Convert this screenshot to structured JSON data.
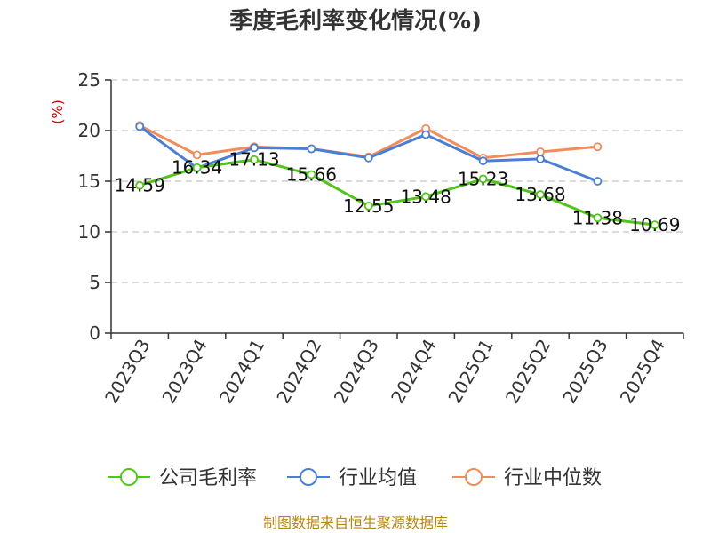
{
  "chart_data": {
    "type": "line",
    "title": "季度毛利率变化情况(%)",
    "ylabel": "(%)",
    "ylim": [
      0,
      25
    ],
    "yticks": [
      0,
      5,
      10,
      15,
      20,
      25
    ],
    "grid": true,
    "legend_position": "bottom",
    "categories": [
      "2023Q3",
      "2023Q4",
      "2024Q1",
      "2024Q2",
      "2024Q3",
      "2024Q4",
      "2025Q1",
      "2025Q2",
      "2025Q3",
      "2025Q4"
    ],
    "series": [
      {
        "name": "公司毛利率",
        "color": "#52c41a",
        "show_labels": true,
        "values": [
          14.59,
          16.34,
          17.13,
          15.66,
          12.55,
          13.48,
          15.23,
          13.68,
          11.38,
          10.69
        ]
      },
      {
        "name": "行业均值",
        "color": "#4a7fd4",
        "show_labels": false,
        "values": [
          20.4,
          16.3,
          18.3,
          18.2,
          17.3,
          19.6,
          17.0,
          17.2,
          15.0,
          null
        ]
      },
      {
        "name": "行业中位数",
        "color": "#f28c5c",
        "show_labels": false,
        "values": [
          20.5,
          17.6,
          18.4,
          18.2,
          17.4,
          20.2,
          17.3,
          17.9,
          18.4,
          null
        ]
      }
    ],
    "source": "制图数据来自恒生聚源数据库"
  }
}
